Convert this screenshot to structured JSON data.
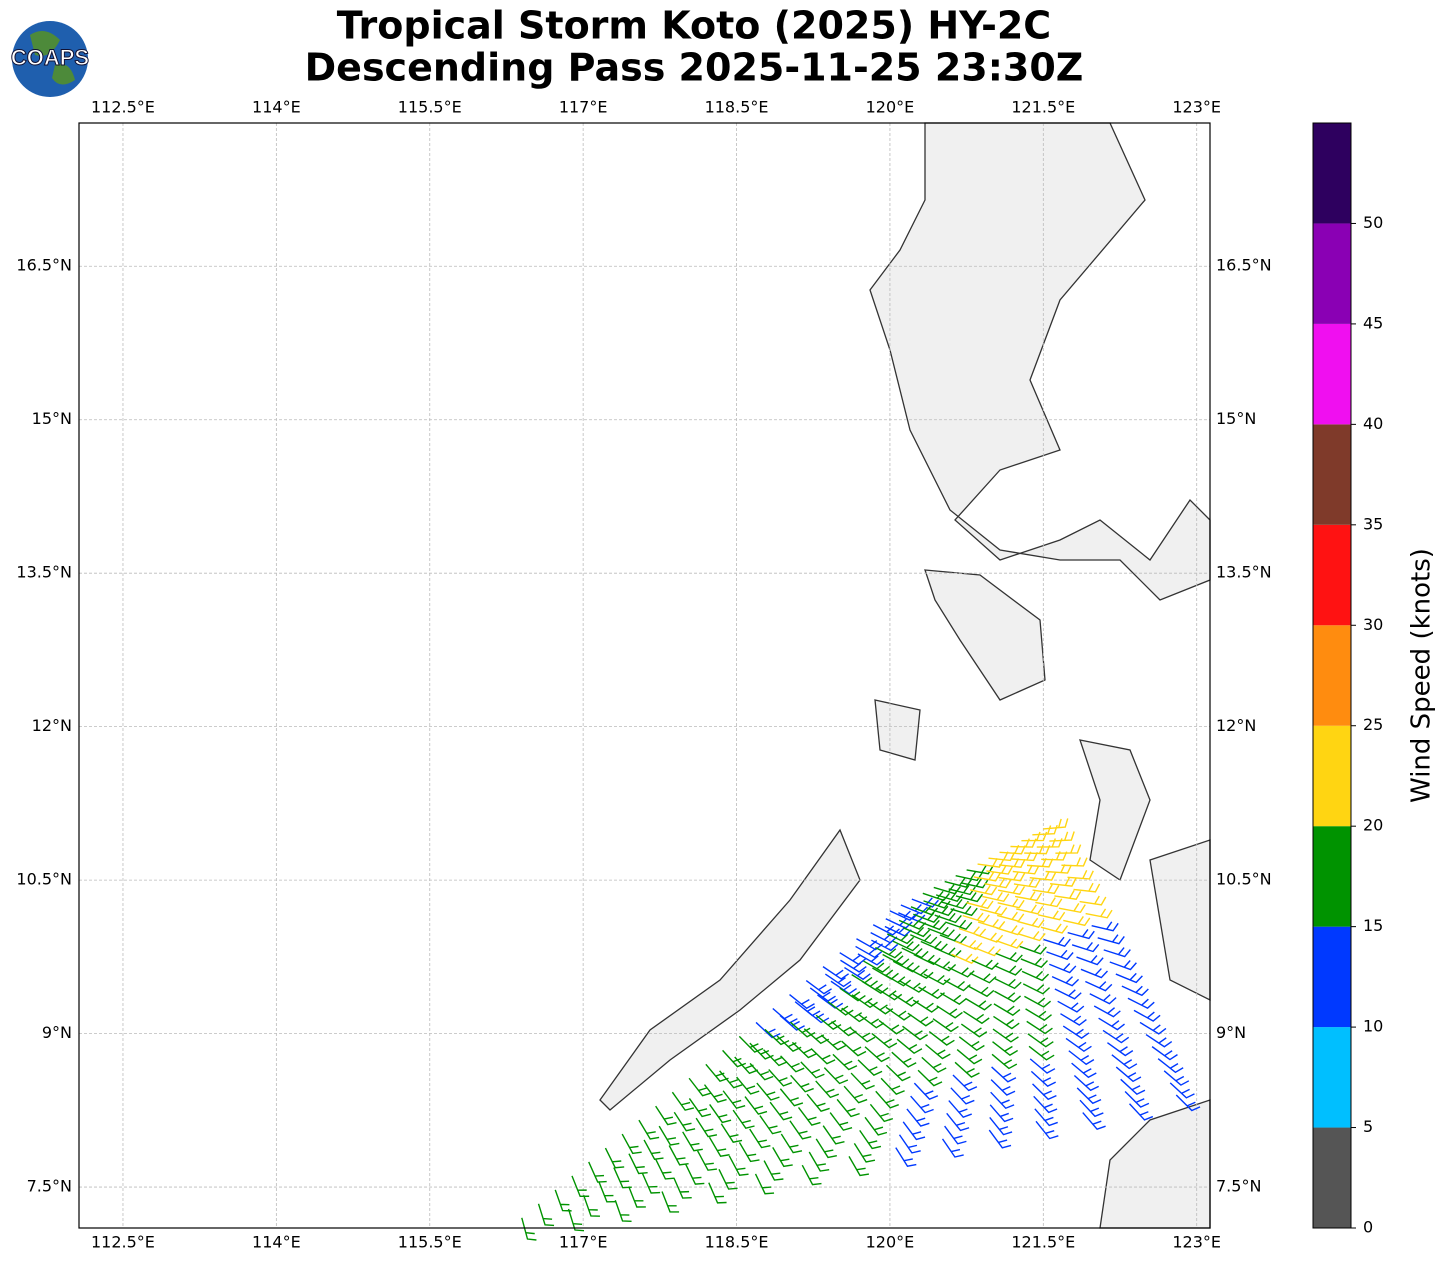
{
  "logo": "COAPS",
  "chart_data": {
    "type": "map",
    "title": [
      "Tropical Storm Koto (2025) HY-2C",
      "Descending Pass 2025-11-25 23:30Z"
    ],
    "xlim": [
      112.07,
      123.13
    ],
    "ylim": [
      7.1,
      17.9
    ],
    "xticks": [
      {
        "value": 112.5,
        "label": "112.5°E"
      },
      {
        "value": 114,
        "label": "114°E"
      },
      {
        "value": 115.5,
        "label": "115.5°E"
      },
      {
        "value": 117,
        "label": "117°E"
      },
      {
        "value": 118.5,
        "label": "118.5°E"
      },
      {
        "value": 120,
        "label": "120°E"
      },
      {
        "value": 121.5,
        "label": "121.5°E"
      },
      {
        "value": 123,
        "label": "123°E"
      }
    ],
    "yticks": [
      {
        "value": 7.5,
        "label": "7.5°N"
      },
      {
        "value": 9,
        "label": "9°N"
      },
      {
        "value": 10.5,
        "label": "10.5°N"
      },
      {
        "value": 12,
        "label": "12°N"
      },
      {
        "value": 13.5,
        "label": "13.5°N"
      },
      {
        "value": 15,
        "label": "15°N"
      },
      {
        "value": 16.5,
        "label": "16.5°N"
      }
    ],
    "grid": true,
    "colorbar": {
      "label": "Wind Speed (knots)",
      "lim": [
        0,
        55
      ],
      "ticks": [
        0,
        5,
        10,
        15,
        20,
        25,
        30,
        35,
        40,
        45,
        50
      ],
      "bounds": [
        0,
        5,
        10,
        15,
        20,
        25,
        30,
        35,
        40,
        45,
        50,
        55
      ],
      "colors": [
        "#555555",
        "#00bfff",
        "#0039ff",
        "#009300",
        "#ffd512",
        "#ff8c0f",
        "#ff1212",
        "#7f3a2a",
        "#f00ff0",
        "#8a00b4",
        "#2e005f"
      ]
    }
  }
}
